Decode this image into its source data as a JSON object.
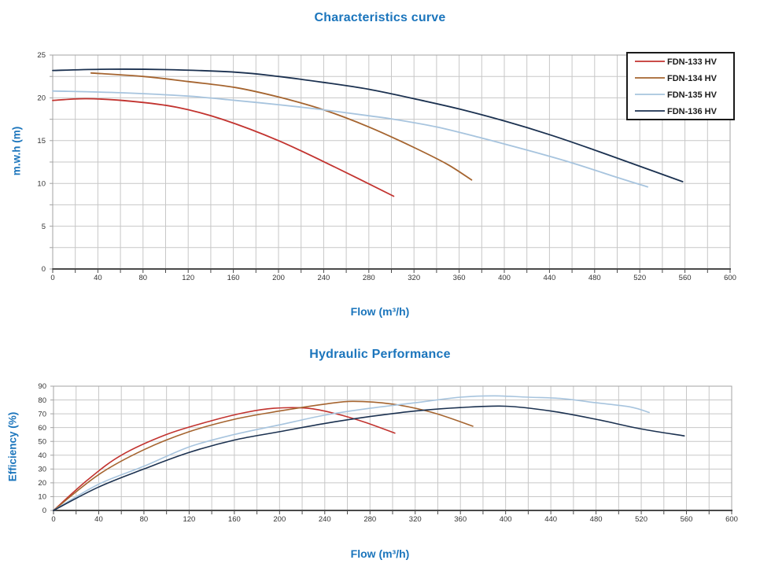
{
  "colors": {
    "title_blue": "#1b75bc",
    "grid": "#c7c7c7",
    "spine": "#a3a3a3",
    "axis_dark": "#4a4a4a",
    "tick_label": "#333333",
    "legend_border": "#1a1a1a",
    "legend_text": "#1a1a1a",
    "background": "#ffffff"
  },
  "chart_data": [
    {
      "type": "line",
      "title": "Characteristics curve",
      "xlabel": "Flow (m³/h)",
      "ylabel": "m.w.h (m)",
      "xlim": [
        0,
        600
      ],
      "ylim": [
        0,
        25
      ],
      "x_grid_step": 20,
      "x_label_step": 40,
      "y_grid_step": 2.5,
      "y_label_step": 5,
      "grid": true,
      "legend_position": "top-right",
      "series": [
        {
          "name": "FDN-133 HV",
          "color": "#c2332f",
          "points": [
            [
              0,
              19.7
            ],
            [
              30,
              19.9
            ],
            [
              70,
              19.6
            ],
            [
              110,
              18.9
            ],
            [
              150,
              17.5
            ],
            [
              200,
              15.0
            ],
            [
              250,
              11.9
            ],
            [
              302,
              8.5
            ]
          ]
        },
        {
          "name": "FDN-134 HV",
          "color": "#a5642f",
          "points": [
            [
              34,
              22.9
            ],
            [
              80,
              22.5
            ],
            [
              120,
              21.9
            ],
            [
              162,
              21.2
            ],
            [
              200,
              20.1
            ],
            [
              240,
              18.6
            ],
            [
              280,
              16.6
            ],
            [
              320,
              14.2
            ],
            [
              350,
              12.2
            ],
            [
              371,
              10.4
            ]
          ]
        },
        {
          "name": "FDN-135 HV",
          "color": "#a7c4de",
          "points": [
            [
              0,
              20.8
            ],
            [
              60,
              20.6
            ],
            [
              120,
              20.2
            ],
            [
              162,
              19.7
            ],
            [
              200,
              19.2
            ],
            [
              240,
              18.6
            ],
            [
              280,
              17.9
            ],
            [
              302,
              17.5
            ],
            [
              340,
              16.6
            ],
            [
              380,
              15.3
            ],
            [
              420,
              13.9
            ],
            [
              460,
              12.4
            ],
            [
              500,
              10.7
            ],
            [
              527,
              9.6
            ]
          ]
        },
        {
          "name": "FDN-136 HV",
          "color": "#1b3150",
          "points": [
            [
              0,
              23.2
            ],
            [
              50,
              23.35
            ],
            [
              100,
              23.3
            ],
            [
              162,
              23.0
            ],
            [
              200,
              22.5
            ],
            [
              240,
              21.8
            ],
            [
              280,
              21.0
            ],
            [
              320,
              19.9
            ],
            [
              360,
              18.7
            ],
            [
              400,
              17.3
            ],
            [
              440,
              15.7
            ],
            [
              480,
              13.9
            ],
            [
              520,
              12.0
            ],
            [
              558,
              10.2
            ]
          ]
        }
      ]
    },
    {
      "type": "line",
      "title": "Hydraulic Performance",
      "xlabel": "Flow (m³/h)",
      "ylabel": "Efficiency (%)",
      "xlim": [
        0,
        600
      ],
      "ylim": [
        0,
        90
      ],
      "x_grid_step": 20,
      "x_label_step": 40,
      "y_grid_step": 10,
      "y_label_step": 10,
      "grid": true,
      "legend_position": null,
      "series": [
        {
          "name": "FDN-133 HV",
          "color": "#c2332f",
          "points": [
            [
              0,
              0
            ],
            [
              30,
              22
            ],
            [
              60,
              40
            ],
            [
              100,
              55
            ],
            [
              140,
              65
            ],
            [
              170,
              71
            ],
            [
              195,
              74
            ],
            [
              225,
              74
            ],
            [
              250,
              70
            ],
            [
              275,
              64
            ],
            [
              302,
              56
            ]
          ]
        },
        {
          "name": "FDN-134 HV",
          "color": "#a5642f",
          "points": [
            [
              0,
              0
            ],
            [
              40,
              26
            ],
            [
              80,
              44
            ],
            [
              120,
              57
            ],
            [
              160,
              66
            ],
            [
              200,
              72
            ],
            [
              240,
              77
            ],
            [
              265,
              79
            ],
            [
              300,
              77
            ],
            [
              335,
              71
            ],
            [
              371,
              61
            ]
          ]
        },
        {
          "name": "FDN-135 HV",
          "color": "#a7c4de",
          "points": [
            [
              0,
              0
            ],
            [
              40,
              19
            ],
            [
              80,
              32
            ],
            [
              120,
              46
            ],
            [
              160,
              55
            ],
            [
              200,
              62
            ],
            [
              240,
              69
            ],
            [
              280,
              74
            ],
            [
              320,
              78
            ],
            [
              360,
              82
            ],
            [
              390,
              83
            ],
            [
              420,
              82
            ],
            [
              450,
              81
            ],
            [
              480,
              78
            ],
            [
              510,
              75
            ],
            [
              527,
              71
            ]
          ]
        },
        {
          "name": "FDN-136 HV",
          "color": "#1b3150",
          "points": [
            [
              0,
              0
            ],
            [
              40,
              17
            ],
            [
              80,
              30
            ],
            [
              120,
              42
            ],
            [
              160,
              51
            ],
            [
              200,
              57
            ],
            [
              240,
              63
            ],
            [
              280,
              68
            ],
            [
              320,
              72
            ],
            [
              360,
              74.5
            ],
            [
              400,
              75.5
            ],
            [
              440,
              72
            ],
            [
              480,
              66
            ],
            [
              520,
              59
            ],
            [
              558,
              54
            ]
          ]
        }
      ]
    }
  ]
}
